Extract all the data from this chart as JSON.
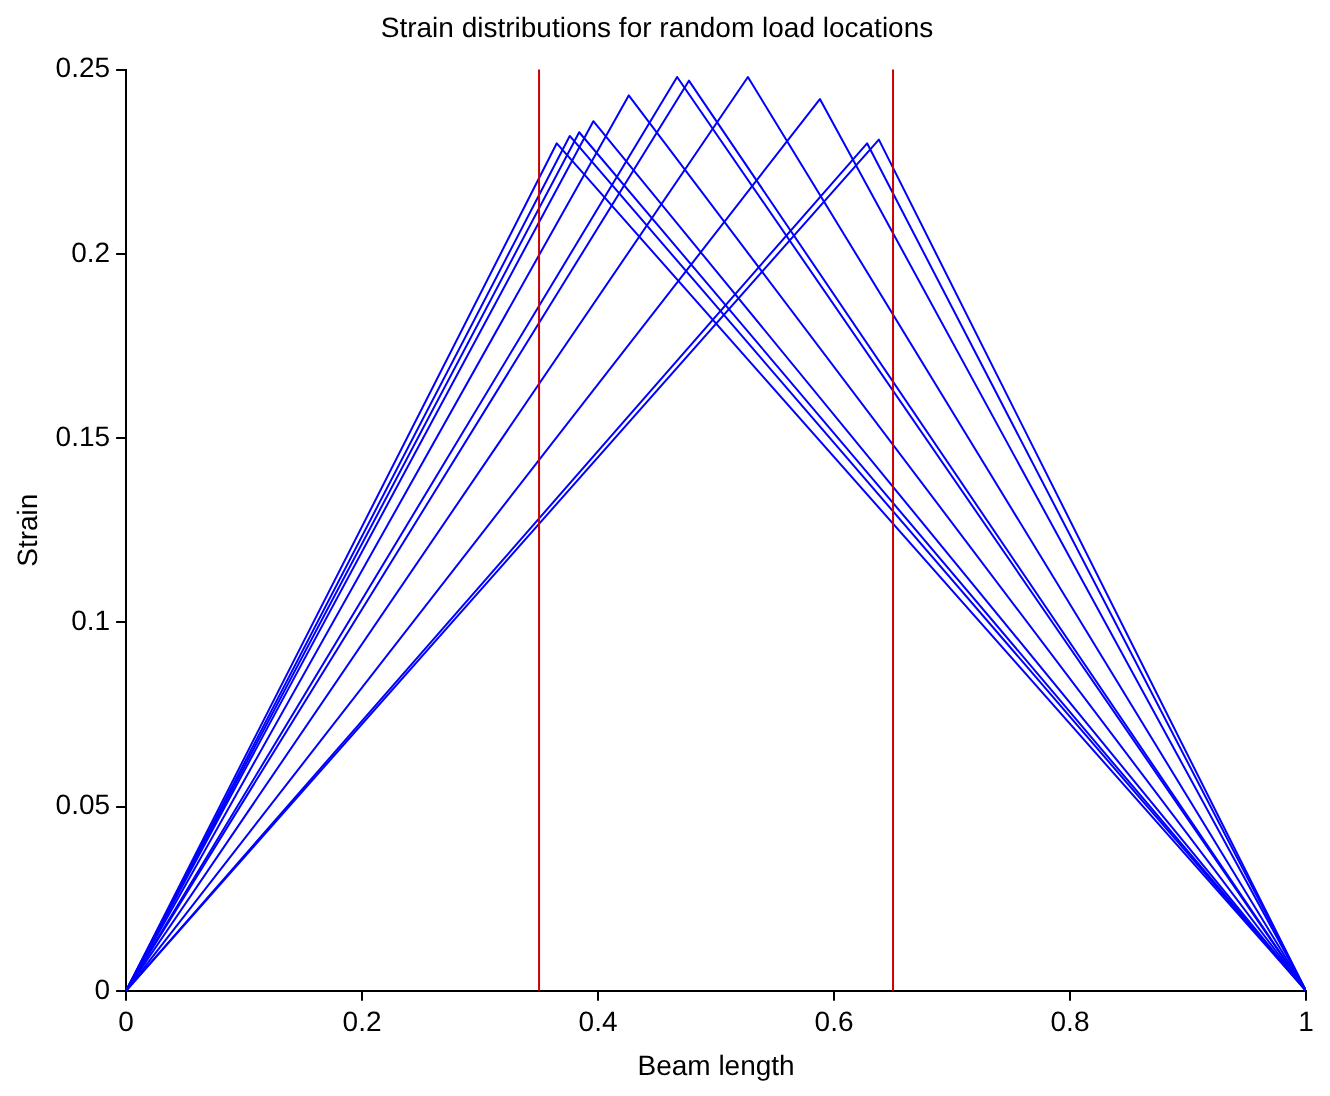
{
  "chart_data": {
    "type": "line",
    "title": "Strain distributions for random load locations",
    "xlabel": "Beam length",
    "ylabel": "Strain",
    "xlim": [
      0,
      1
    ],
    "xticks": [
      0,
      0.2,
      0.4,
      0.6,
      0.8,
      1
    ],
    "ylim": [
      0,
      0.25
    ],
    "yticks": [
      0,
      0.05,
      0.1,
      0.15,
      0.2,
      0.25
    ],
    "grid": false,
    "legend": false,
    "marker": "none",
    "line_style": "solid",
    "series": [
      {
        "color": "#0000ff",
        "x": [
          0,
          0.365,
          1
        ],
        "values": [
          0,
          0.23,
          0
        ]
      },
      {
        "color": "#0000ff",
        "x": [
          0,
          0.376,
          1
        ],
        "values": [
          0,
          0.232,
          0
        ]
      },
      {
        "color": "#0000ff",
        "x": [
          0,
          0.384,
          1
        ],
        "values": [
          0,
          0.233,
          0
        ]
      },
      {
        "color": "#0000ff",
        "x": [
          0,
          0.396,
          1
        ],
        "values": [
          0,
          0.236,
          0
        ]
      },
      {
        "color": "#0000ff",
        "x": [
          0,
          0.426,
          1
        ],
        "values": [
          0,
          0.243,
          0
        ]
      },
      {
        "color": "#0000ff",
        "x": [
          0,
          0.467,
          1
        ],
        "values": [
          0,
          0.248,
          0
        ]
      },
      {
        "color": "#0000ff",
        "x": [
          0,
          0.477,
          1
        ],
        "values": [
          0,
          0.247,
          0
        ]
      },
      {
        "color": "#0000ff",
        "x": [
          0,
          0.527,
          1
        ],
        "values": [
          0,
          0.248,
          0
        ]
      },
      {
        "color": "#0000ff",
        "x": [
          0,
          0.588,
          1
        ],
        "values": [
          0,
          0.242,
          0
        ]
      },
      {
        "color": "#0000ff",
        "x": [
          0,
          0.628,
          1
        ],
        "values": [
          0,
          0.23,
          0
        ]
      },
      {
        "color": "#0000ff",
        "x": [
          0,
          0.638,
          1
        ],
        "values": [
          0,
          0.231,
          0
        ]
      }
    ],
    "ref_lines": [
      {
        "axis": "x",
        "value": 0.35,
        "color": "#cc0000"
      },
      {
        "axis": "x",
        "value": 0.65,
        "color": "#cc0000"
      }
    ]
  }
}
